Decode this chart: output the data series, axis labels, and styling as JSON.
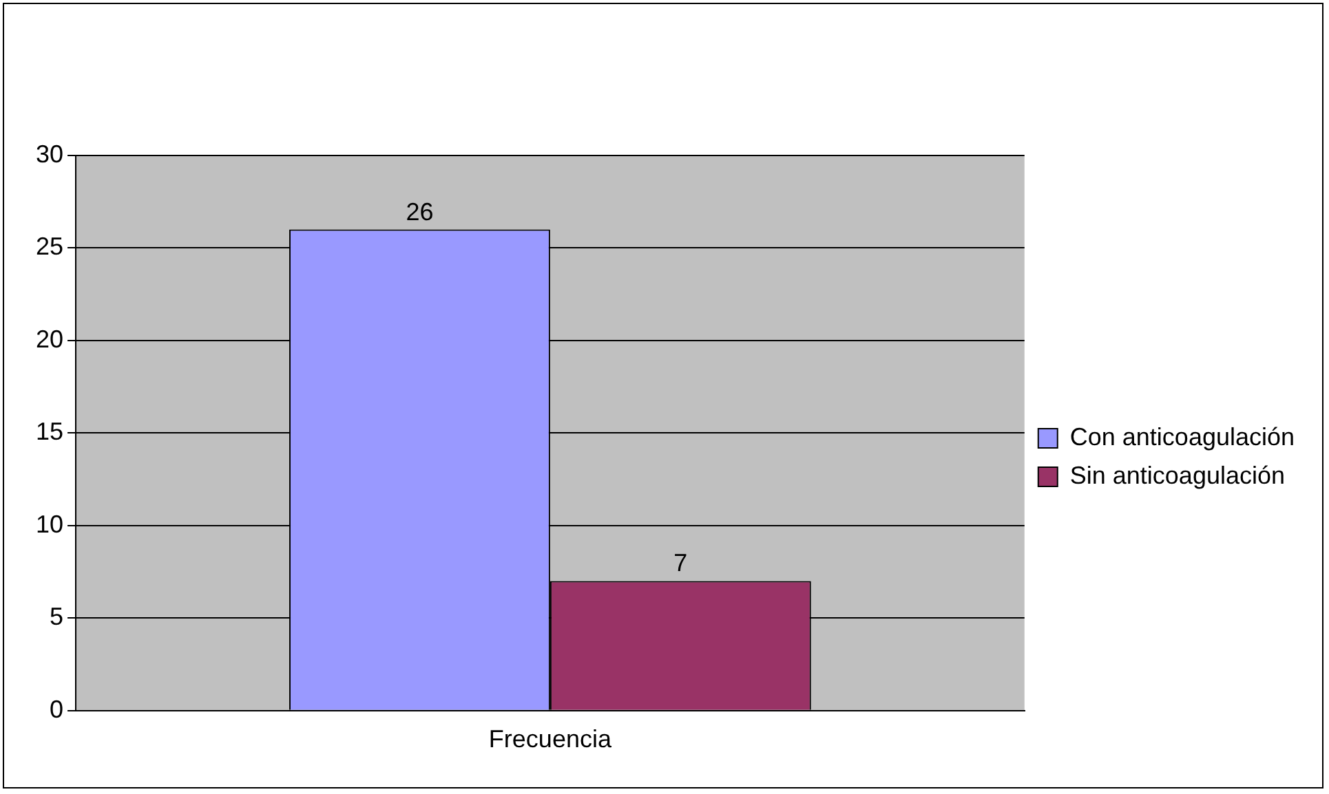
{
  "chart_data": {
    "type": "bar",
    "categories": [
      "Frecuencia"
    ],
    "series": [
      {
        "name": "Con anticoagulación",
        "color": "#9999ff",
        "values": [
          26
        ]
      },
      {
        "name": "Sin anticoagulación",
        "color": "#993366",
        "values": [
          7
        ]
      }
    ],
    "ylim": [
      0,
      30
    ],
    "yticks": [
      0,
      5,
      10,
      15,
      20,
      25,
      30
    ],
    "grid": "y",
    "legend": "right",
    "data_labels": true
  }
}
